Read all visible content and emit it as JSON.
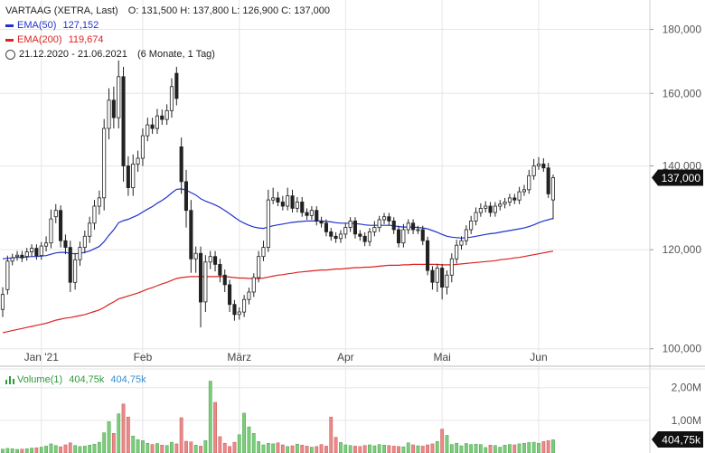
{
  "header": {
    "title_line": "VARTAAG (XETRA, Last)",
    "ohlc": "O: 131,500  H: 137,800  L: 126,900  C: 137,000",
    "ema50_label": "EMA(50)",
    "ema50_value": "127,152",
    "ema200_label": "EMA(200)",
    "ema200_value": "119,674",
    "period": "21.12.2020 - 21.06.2021",
    "period_detail": "(6 Monate, 1 Tag)"
  },
  "volume_legend": {
    "label": "Volume(1)",
    "value_1": "404,75k",
    "value_2": "404,75k"
  },
  "colors": {
    "up": "#ffffff",
    "down": "#222222",
    "ema50": "#2233cc",
    "ema200": "#dd2222",
    "vol_up": "#7ccc7c",
    "vol_down": "#e98a8a",
    "grid": "#e6e6e6",
    "badge": "#111111"
  },
  "chart_data": {
    "type": "candlestick",
    "price_axis": {
      "scale": "log",
      "range": [
        97000,
        190000
      ],
      "ticks": [
        {
          "value": 100000,
          "label": "100,000"
        },
        {
          "value": 120000,
          "label": "120,000"
        },
        {
          "value": 140000,
          "label": "140,000"
        },
        {
          "value": 160000,
          "label": "160,000"
        },
        {
          "value": 180000,
          "label": "180,000"
        }
      ]
    },
    "last_price_label": "137,000",
    "last_price": 137000,
    "x_ticks": [
      {
        "label": "Jan '21",
        "index": 8
      },
      {
        "label": "Feb",
        "index": 29
      },
      {
        "label": "März",
        "index": 49
      },
      {
        "label": "Apr",
        "index": 71
      },
      {
        "label": "Mai",
        "index": 91
      },
      {
        "label": "Jun",
        "index": 111
      }
    ],
    "volume_axis": {
      "range": [
        0,
        2600000
      ],
      "ticks": [
        {
          "value": 1000000,
          "label": "1,00M"
        },
        {
          "value": 2000000,
          "label": "2,00M"
        }
      ]
    },
    "last_volume_label": "404,75k",
    "series_close": [
      110500,
      117500,
      118200,
      118800,
      118200,
      119500,
      120300,
      118700,
      120800,
      121500,
      127000,
      129000,
      122000,
      120500,
      113000,
      117800,
      120500,
      123000,
      126000,
      130000,
      132000,
      150000,
      158000,
      153000,
      165000,
      140000,
      134500,
      140500,
      142000,
      148000,
      151000,
      150000,
      153500,
      152500,
      155000,
      162000,
      158500,
      136000,
      129000,
      118000,
      119200,
      109000,
      117300,
      118500,
      116800,
      114500,
      112500,
      108500,
      106500,
      107000,
      109500,
      111000,
      114000,
      118500,
      120500,
      131500,
      132000,
      131000,
      130000,
      132500,
      129500,
      131000,
      128500,
      127800,
      129000,
      126500,
      126000,
      124000,
      123000,
      122500,
      123500,
      125000,
      126500,
      123500,
      123000,
      121800,
      124000,
      125000,
      126800,
      127500,
      126500,
      124500,
      121500,
      124500,
      126000,
      124500,
      124500,
      122000,
      115500,
      113000,
      116000,
      112000,
      114500,
      118000,
      121000,
      122000,
      124500,
      126500,
      128500,
      129500,
      130000,
      128500,
      130000,
      130500,
      131000,
      132000,
      131500,
      133500,
      134000,
      137500,
      140000,
      140500,
      139500,
      133000,
      137000
    ],
    "series_open": [
      107500,
      111500,
      117500,
      118500,
      118800,
      118500,
      119500,
      120300,
      118700,
      120800,
      121500,
      127500,
      129000,
      122000,
      120500,
      113000,
      117800,
      120500,
      123000,
      126000,
      130000,
      132000,
      150000,
      158000,
      153000,
      165000,
      140000,
      134500,
      140500,
      142000,
      148000,
      151000,
      150000,
      153500,
      152500,
      155000,
      166000,
      145000,
      136000,
      129000,
      118000,
      119200,
      109000,
      117300,
      118500,
      116800,
      114500,
      112500,
      108500,
      106500,
      107000,
      109500,
      111000,
      114000,
      118500,
      120500,
      131500,
      132000,
      131000,
      130000,
      132500,
      129500,
      131000,
      128500,
      127800,
      129000,
      126500,
      126000,
      124000,
      123000,
      122500,
      123500,
      125000,
      126500,
      123500,
      123000,
      121800,
      124000,
      125000,
      126800,
      127500,
      126500,
      124500,
      121500,
      124500,
      126000,
      124500,
      124500,
      122000,
      115500,
      113000,
      116000,
      112000,
      114500,
      118000,
      121000,
      122000,
      124500,
      126500,
      128500,
      129500,
      130000,
      128500,
      130000,
      130500,
      131000,
      132000,
      131500,
      133500,
      134000,
      137500,
      140000,
      140500,
      139500,
      131500
    ],
    "series_high_extra": [
      1500,
      1200,
      900,
      900,
      900,
      900,
      900,
      900,
      900,
      1500,
      2200,
      1500,
      1200,
      1400,
      1500,
      1500,
      1300,
      1300,
      1500,
      1500,
      1800,
      2600,
      3500,
      4000,
      5000,
      3000,
      2500,
      2500,
      2000,
      2000,
      2000,
      2000,
      2000,
      1800,
      1800,
      2500,
      2000,
      2500,
      3000,
      2500,
      1500,
      1500,
      1500,
      1200,
      1200,
      1200,
      1200,
      1000,
      900,
      900,
      900,
      900,
      900,
      1200,
      1500,
      2500,
      2500,
      1500,
      1500,
      2000,
      1500,
      1200,
      1200,
      1000,
      1000,
      1000,
      1000,
      900,
      900,
      900,
      900,
      900,
      900,
      900,
      900,
      900,
      900,
      1500,
      900,
      900,
      900,
      900,
      900,
      1300,
      900,
      900,
      900,
      900,
      900,
      900,
      900,
      900,
      1000,
      1200,
      1200,
      1000,
      1000,
      1200,
      1200,
      1200,
      1200,
      1000,
      1000,
      1000,
      1000,
      1000,
      1000,
      1200,
      1200,
      1500,
      1800,
      1800,
      1500,
      1300,
      800
    ],
    "series_low_extra": [
      1500,
      1000,
      900,
      900,
      900,
      900,
      900,
      900,
      900,
      1200,
      1200,
      1500,
      1500,
      1500,
      2000,
      1500,
      1300,
      1300,
      1500,
      1500,
      2000,
      3000,
      3000,
      3000,
      3000,
      4000,
      2000,
      2000,
      2000,
      2000,
      1500,
      1500,
      1500,
      1500,
      1500,
      2000,
      2000,
      3000,
      4000,
      3000,
      3000,
      5000,
      2000,
      1500,
      1500,
      1500,
      1500,
      1500,
      1200,
      1000,
      1000,
      1000,
      1000,
      1000,
      1000,
      1000,
      1000,
      1000,
      1000,
      1000,
      1000,
      1000,
      1000,
      1000,
      1000,
      1000,
      1000,
      1000,
      1000,
      1000,
      1000,
      1000,
      1000,
      1000,
      1000,
      1000,
      1000,
      1000,
      1000,
      1000,
      1000,
      1000,
      1000,
      1000,
      1000,
      1000,
      1000,
      1000,
      1000,
      1500,
      2000,
      2500,
      1500,
      1500,
      1000,
      1000,
      1000,
      1000,
      1000,
      1000,
      1000,
      1000,
      1000,
      1000,
      1000,
      1000,
      1000,
      1000,
      1000,
      1000,
      1000,
      1000,
      1000,
      1000,
      4600
    ],
    "ema50": [
      118000,
      118100,
      118200,
      118300,
      118300,
      118400,
      118500,
      118500,
      118600,
      118700,
      119000,
      119300,
      119400,
      119400,
      119200,
      119100,
      119200,
      119400,
      119700,
      120200,
      120700,
      121800,
      123200,
      124500,
      126100,
      126600,
      126900,
      127400,
      127900,
      128600,
      129300,
      129900,
      130700,
      131400,
      132200,
      133200,
      134100,
      134200,
      133900,
      133300,
      132700,
      131800,
      131200,
      130800,
      130300,
      129700,
      129000,
      128200,
      127400,
      126600,
      126000,
      125500,
      125100,
      124900,
      124800,
      125100,
      125400,
      125600,
      125800,
      126000,
      126200,
      126300,
      126400,
      126500,
      126500,
      126500,
      126500,
      126400,
      126300,
      126100,
      126000,
      126000,
      126000,
      125900,
      125800,
      125600,
      125500,
      125500,
      125500,
      125500,
      125500,
      125400,
      125200,
      125100,
      125100,
      125100,
      125000,
      124900,
      124700,
      124300,
      123900,
      123400,
      123000,
      122800,
      122700,
      122600,
      122700,
      122800,
      123000,
      123200,
      123400,
      123600,
      123700,
      123900,
      124100,
      124300,
      124500,
      124700,
      124900,
      125200,
      125600,
      126100,
      126500,
      126800,
      127152
    ],
    "ema200": [
      103000,
      103200,
      103400,
      103600,
      103800,
      104000,
      104200,
      104400,
      104600,
      104800,
      105100,
      105400,
      105600,
      105800,
      105900,
      106100,
      106300,
      106500,
      106800,
      107100,
      107400,
      107900,
      108500,
      109000,
      109600,
      109900,
      110200,
      110500,
      110800,
      111200,
      111600,
      111900,
      112300,
      112700,
      113000,
      113400,
      113800,
      114000,
      114100,
      114200,
      114200,
      114200,
      114200,
      114200,
      114200,
      114200,
      114200,
      114100,
      114000,
      113900,
      113900,
      113800,
      113800,
      113800,
      113900,
      114100,
      114300,
      114500,
      114600,
      114800,
      114900,
      115100,
      115200,
      115300,
      115400,
      115500,
      115600,
      115600,
      115700,
      115800,
      115800,
      115900,
      116000,
      116100,
      116100,
      116200,
      116200,
      116300,
      116400,
      116500,
      116600,
      116600,
      116600,
      116700,
      116700,
      116800,
      116800,
      116800,
      116800,
      116800,
      116800,
      116700,
      116700,
      116700,
      116800,
      116900,
      117000,
      117100,
      117200,
      117300,
      117400,
      117500,
      117600,
      117800,
      117900,
      118000,
      118200,
      118300,
      118500,
      118700,
      118900,
      119100,
      119300,
      119500,
      119674
    ],
    "volume": [
      120000,
      140000,
      130000,
      110000,
      120000,
      130000,
      150000,
      160000,
      180000,
      210000,
      280000,
      230000,
      190000,
      250000,
      310000,
      230000,
      200000,
      210000,
      240000,
      270000,
      330000,
      620000,
      960000,
      600000,
      1200000,
      1500000,
      1100000,
      520000,
      410000,
      380000,
      300000,
      260000,
      290000,
      240000,
      230000,
      330000,
      280000,
      1080000,
      360000,
      340000,
      240000,
      210000,
      380000,
      2200000,
      1550000,
      500000,
      300000,
      200000,
      330000,
      560000,
      1220000,
      800000,
      600000,
      350000,
      250000,
      300000,
      280000,
      310000,
      250000,
      200000,
      220000,
      270000,
      240000,
      210000,
      180000,
      200000,
      260000,
      210000,
      1100000,
      480000,
      320000,
      250000,
      230000,
      210000,
      200000,
      230000,
      250000,
      220000,
      260000,
      240000,
      230000,
      210000,
      200000,
      190000,
      310000,
      250000,
      220000,
      210000,
      250000,
      280000,
      350000,
      730000,
      540000,
      260000,
      300000,
      220000,
      290000,
      260000,
      270000,
      260000,
      170000,
      240000,
      230000,
      180000,
      240000,
      260000,
      250000,
      280000,
      300000,
      320000,
      330000,
      300000,
      350000,
      380000,
      404750
    ]
  }
}
